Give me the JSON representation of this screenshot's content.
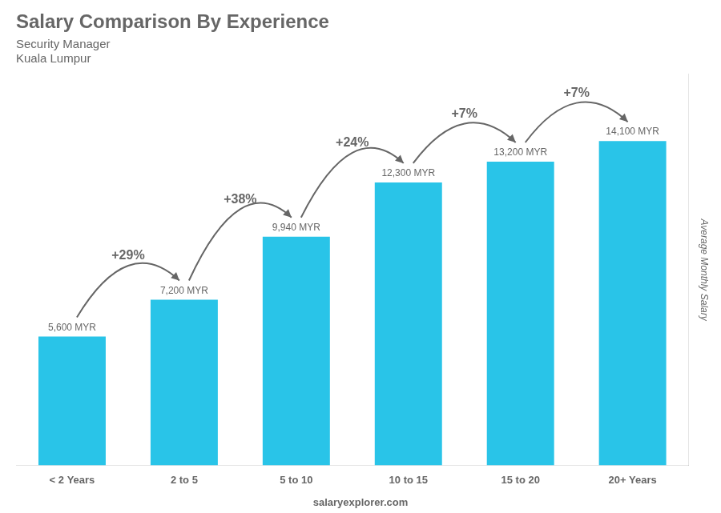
{
  "chart_data": {
    "type": "bar",
    "title": "Salary Comparison By Experience",
    "subtitle": [
      "Security Manager",
      "Kuala Lumpur"
    ],
    "ylabel": "Average Monthly Salary",
    "categories": [
      "< 2 Years",
      "2 to 5",
      "5 to 10",
      "10 to 15",
      "15 to 20",
      "20+ Years"
    ],
    "values": [
      5600,
      7200,
      9940,
      12300,
      13200,
      14100
    ],
    "value_labels": [
      "5,600 MYR",
      "7,200 MYR",
      "9,940 MYR",
      "12,300 MYR",
      "13,200 MYR",
      "14,100 MYR"
    ],
    "data_labels": true,
    "color": "#29C4E8",
    "ylim": [
      0,
      17000
    ],
    "grid": false,
    "tick_labels": "x",
    "annotations": [
      {
        "text": "+29%",
        "from": "< 2 Years",
        "to": "2 to 5"
      },
      {
        "text": "+38%",
        "from": "2 to 5",
        "to": "5 to 10"
      },
      {
        "text": "+24%",
        "from": "5 to 10",
        "to": "10 to 15"
      },
      {
        "text": "+7%",
        "from": "10 to 15",
        "to": "15 to 20"
      },
      {
        "text": "+7%",
        "from": "15 to 20",
        "to": "20+ Years"
      },
      {
        "text": "salaryexplorer.com"
      }
    ]
  }
}
